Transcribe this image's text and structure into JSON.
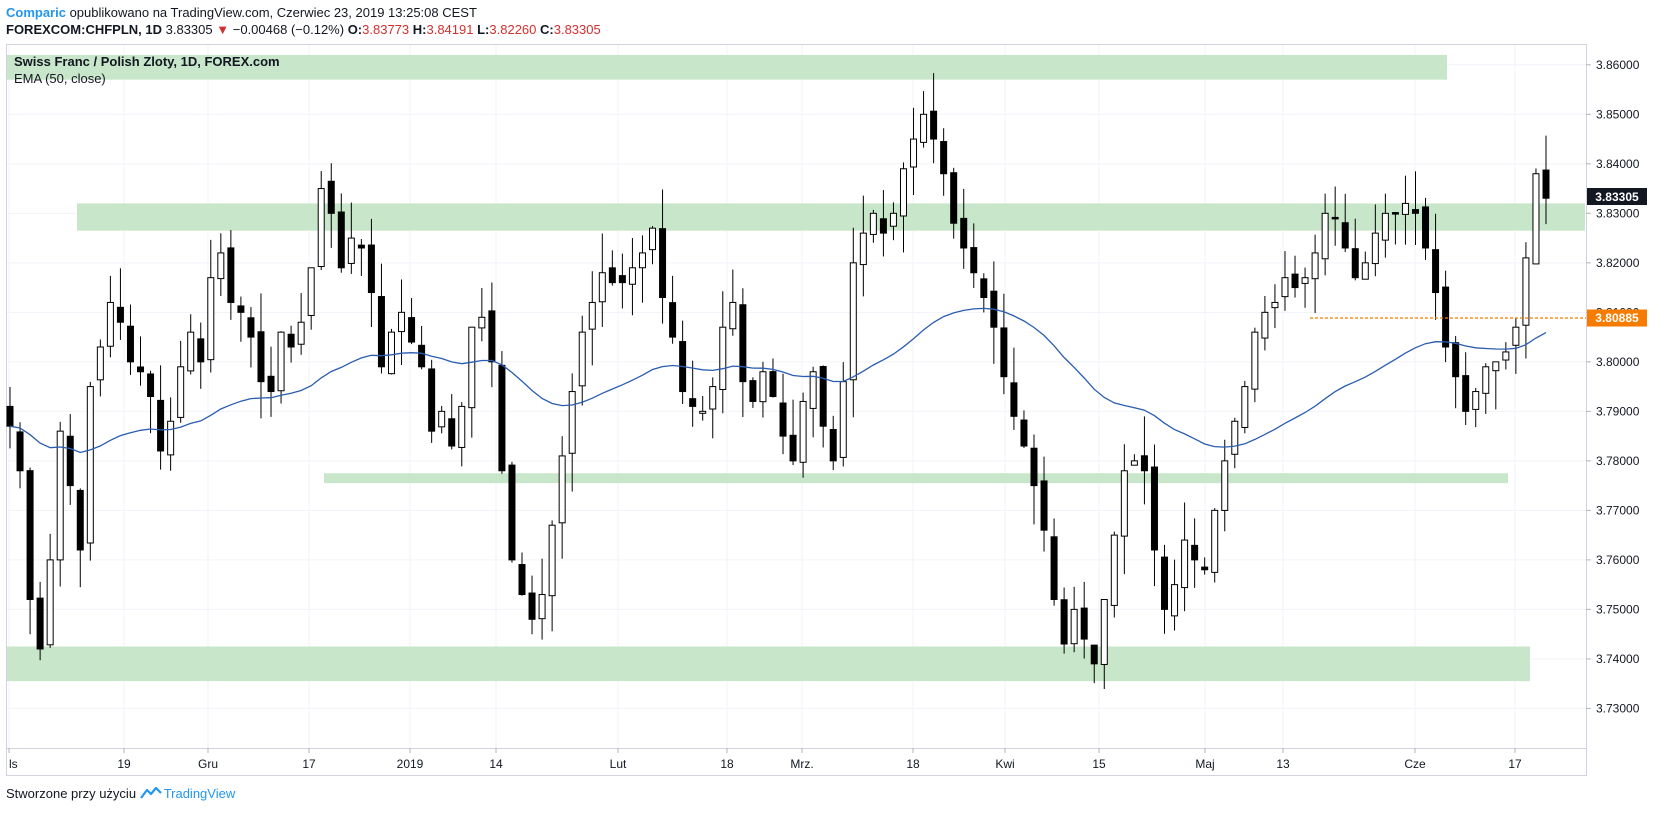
{
  "header": {
    "author": "Comparic",
    "published_text": " opublikowano na TradingView.com, Czerwiec 23, 2019 13:25:08 CEST",
    "symbol": "FOREXCOM:CHFPLN, 1D",
    "last": "3.83305",
    "arrow": "▼",
    "change": "−0.00468 (−0.12%)",
    "o_label": "O:",
    "o_value": "3.83773",
    "h_label": "H:",
    "h_value": "3.84191",
    "l_label": "L:",
    "l_value": "3.82260",
    "c_label": "C:",
    "c_value": "3.83305"
  },
  "legend": {
    "title": "Swiss Franc / Polish Zloty, 1D, FOREX.com",
    "indicator": "EMA (50, close)"
  },
  "footer": {
    "created_with": "Stworzone przy użyciu",
    "brand": "TradingView"
  },
  "colors": {
    "zone": "#c8e6c9",
    "ema": "#2a5db0",
    "price_line": "#f57c00",
    "candle_bull": "#ffffff",
    "candle_bear": "#000000",
    "grid": "#f0f3fa"
  },
  "chart_data": {
    "type": "candlestick",
    "instrument": "CHFPLN",
    "timeframe": "1D",
    "ylim": [
      3.722,
      3.864
    ],
    "y_ticks": [
      "3.86000",
      "3.85000",
      "3.84000",
      "3.83000",
      "3.82000",
      "3.81000",
      "3.80000",
      "3.79000",
      "3.78000",
      "3.77000",
      "3.76000",
      "3.75000",
      "3.74000",
      "3.73000"
    ],
    "x_ticks": [
      "ls",
      "19",
      "Gru",
      "17",
      "2019",
      "14",
      "Lut",
      "18",
      "Mrz.",
      "18",
      "Kwi",
      "15",
      "Maj",
      "13",
      "Cze",
      "17"
    ],
    "current_price_label": "3.83305",
    "ema_label": "3.80885",
    "ema_value": 3.80885,
    "zones": [
      {
        "from": 3.857,
        "to": 3.862
      },
      {
        "from": 3.8265,
        "to": 3.832
      },
      {
        "from": 3.7755,
        "to": 3.7775
      },
      {
        "from": 3.7355,
        "to": 3.7425
      }
    ],
    "close_path": [
      3.787,
      3.778,
      3.752,
      3.742,
      3.76,
      3.786,
      3.775,
      3.762,
      3.795,
      3.803,
      3.812,
      3.808,
      3.8,
      3.798,
      3.793,
      3.782,
      3.788,
      3.799,
      3.806,
      3.8,
      3.817,
      3.822,
      3.812,
      3.81,
      3.805,
      3.796,
      3.794,
      3.806,
      3.803,
      3.808,
      3.819,
      3.835,
      3.83,
      3.819,
      3.825,
      3.823,
      3.814,
      3.799,
      3.806,
      3.81,
      3.804,
      3.799,
      3.786,
      3.79,
      3.783,
      3.791,
      3.807,
      3.809,
      3.8,
      3.778,
      3.76,
      3.753,
      3.748,
      3.753,
      3.767,
      3.781,
      3.794,
      3.806,
      3.812,
      3.818,
      3.816,
      3.816,
      3.819,
      3.822,
      3.827,
      3.813,
      3.805,
      3.794,
      3.791,
      3.79,
      3.795,
      3.807,
      3.812,
      3.796,
      3.792,
      3.798,
      3.793,
      3.785,
      3.78,
      3.792,
      3.798,
      3.787,
      3.78,
      3.796,
      3.82,
      3.826,
      3.83,
      3.826,
      3.83,
      3.839,
      3.845,
      3.85,
      3.845,
      3.838,
      3.828,
      3.823,
      3.818,
      3.813,
      3.807,
      3.797,
      3.789,
      3.783,
      3.775,
      3.766,
      3.752,
      3.743,
      3.75,
      3.744,
      3.739,
      3.752,
      3.765,
      3.778,
      3.78,
      3.778,
      3.762,
      3.75,
      3.755,
      3.764,
      3.76,
      3.758,
      3.77,
      3.78,
      3.788,
      3.795,
      3.806,
      3.81,
      3.812,
      3.817,
      3.815,
      3.817,
      3.822,
      3.83,
      3.829,
      3.823,
      3.817,
      3.82,
      3.826,
      3.83,
      3.83,
      3.832,
      3.83,
      3.823,
      3.814,
      3.803,
      3.797,
      3.79,
      3.794,
      3.799,
      3.8,
      3.802,
      3.807,
      3.821,
      3.838,
      3.83305
    ]
  }
}
